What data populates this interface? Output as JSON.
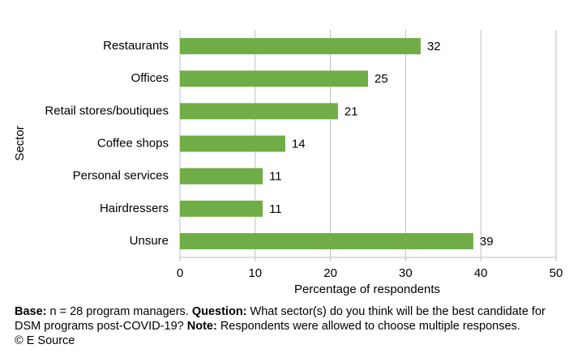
{
  "chart_data": {
    "type": "bar",
    "orientation": "horizontal",
    "categories": [
      "Restaurants",
      "Offices",
      "Retail stores/boutiques",
      "Coffee shops",
      "Personal services",
      "Hairdressers",
      "Unsure"
    ],
    "values": [
      32,
      25,
      21,
      14,
      11,
      11,
      39
    ],
    "color": "#70ad47",
    "xlim": [
      0,
      50
    ],
    "xticks": [
      0,
      10,
      20,
      30,
      40,
      50
    ],
    "grid": true,
    "xlabel": "Percentage of respondents",
    "ylabel": "Sector"
  },
  "footnote": {
    "base_label": "Base:",
    "base": "n = 28 program managers.",
    "question_label": "Question:",
    "question": "What sector(s) do you think will be the best candidate for DSM programs post-COVID-19?",
    "note_label": "Note:",
    "note": "Respondents were allowed to choose multiple responses.",
    "source": "© E Source"
  }
}
